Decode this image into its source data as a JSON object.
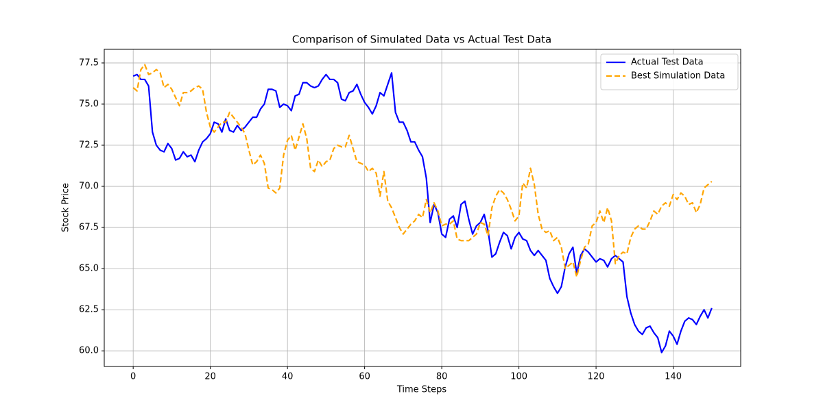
{
  "chart_data": {
    "type": "line",
    "title": "Comparison of Simulated Data vs Actual Test Data",
    "x_label": "Time Steps",
    "y_label": "Stock Price",
    "x": [
      0,
      1,
      2,
      3,
      4,
      5,
      6,
      7,
      8,
      9,
      10,
      11,
      12,
      13,
      14,
      15,
      16,
      17,
      18,
      19,
      20,
      21,
      22,
      23,
      24,
      25,
      26,
      27,
      28,
      29,
      30,
      31,
      32,
      33,
      34,
      35,
      36,
      37,
      38,
      39,
      40,
      41,
      42,
      43,
      44,
      45,
      46,
      47,
      48,
      49,
      50,
      51,
      52,
      53,
      54,
      55,
      56,
      57,
      58,
      59,
      60,
      61,
      62,
      63,
      64,
      65,
      66,
      67,
      68,
      69,
      70,
      71,
      72,
      73,
      74,
      75,
      76,
      77,
      78,
      79,
      80,
      81,
      82,
      83,
      84,
      85,
      86,
      87,
      88,
      89,
      90,
      91,
      92,
      93,
      94,
      95,
      96,
      97,
      98,
      99,
      100,
      101,
      102,
      103,
      104,
      105,
      106,
      107,
      108,
      109,
      110,
      111,
      112,
      113,
      114,
      115,
      116,
      117,
      118,
      119,
      120,
      121,
      122,
      123,
      124,
      125,
      126,
      127,
      128,
      129,
      130,
      131,
      132,
      133,
      134,
      135,
      136,
      137,
      138,
      139,
      140,
      141,
      142,
      143,
      144,
      145,
      146,
      147,
      148,
      149,
      150
    ],
    "series": [
      {
        "name": "Actual Test Data",
        "color": "#0000ff",
        "linestyle": "solid",
        "values": [
          76.7,
          76.8,
          76.5,
          76.5,
          76.1,
          73.3,
          72.5,
          72.2,
          72.1,
          72.6,
          72.3,
          71.6,
          71.7,
          72.1,
          71.8,
          71.9,
          71.5,
          72.2,
          72.7,
          72.9,
          73.2,
          73.9,
          73.8,
          73.3,
          74.1,
          73.4,
          73.3,
          73.7,
          73.4,
          73.6,
          73.9,
          74.2,
          74.2,
          74.7,
          75.0,
          75.9,
          75.9,
          75.8,
          74.8,
          75.0,
          74.9,
          74.6,
          75.5,
          75.6,
          76.3,
          76.3,
          76.1,
          76.0,
          76.1,
          76.5,
          76.8,
          76.5,
          76.5,
          76.3,
          75.3,
          75.2,
          75.7,
          75.8,
          76.2,
          75.6,
          75.1,
          74.8,
          74.4,
          74.9,
          75.7,
          75.5,
          76.2,
          76.9,
          74.5,
          73.9,
          73.9,
          73.4,
          72.7,
          72.7,
          72.2,
          71.8,
          70.5,
          67.8,
          68.9,
          68.4,
          67.1,
          66.9,
          68.0,
          68.2,
          67.5,
          68.9,
          69.1,
          68.0,
          67.1,
          67.6,
          67.8,
          68.3,
          67.3,
          65.7,
          65.9,
          66.6,
          67.2,
          67.0,
          66.2,
          66.9,
          67.2,
          66.8,
          66.7,
          66.1,
          65.8,
          66.1,
          65.8,
          65.5,
          64.4,
          63.9,
          63.5,
          63.9,
          65.1,
          65.9,
          66.3,
          64.7,
          65.8,
          66.2,
          66.0,
          65.7,
          65.4,
          65.6,
          65.5,
          65.1,
          65.6,
          65.8,
          65.6,
          65.4,
          63.3,
          62.3,
          61.6,
          61.2,
          61.0,
          61.4,
          61.5,
          61.1,
          60.8,
          59.9,
          60.3,
          61.2,
          60.9,
          60.4,
          61.2,
          61.8,
          62.0,
          61.9,
          61.6,
          62.1,
          62.5,
          62.0,
          62.6
        ]
      },
      {
        "name": "Best Simulation Data",
        "color": "#ffa500",
        "linestyle": "dashed",
        "values": [
          76.0,
          75.8,
          77.1,
          77.4,
          76.8,
          76.9,
          77.1,
          76.9,
          76.0,
          76.2,
          75.9,
          75.4,
          74.9,
          75.7,
          75.7,
          75.8,
          76.0,
          76.1,
          75.9,
          74.5,
          73.6,
          73.3,
          73.6,
          73.9,
          73.9,
          74.5,
          74.2,
          73.9,
          73.6,
          73.2,
          72.2,
          71.3,
          71.5,
          71.9,
          71.4,
          69.9,
          69.8,
          69.6,
          69.9,
          71.9,
          72.8,
          73.1,
          72.2,
          73.0,
          73.8,
          72.9,
          71.1,
          70.9,
          71.6,
          71.2,
          71.5,
          71.6,
          72.3,
          72.5,
          72.4,
          72.4,
          73.1,
          72.3,
          71.5,
          71.4,
          71.3,
          70.9,
          71.1,
          70.8,
          69.4,
          70.9,
          69.1,
          68.7,
          68.1,
          67.5,
          67.1,
          67.4,
          67.7,
          67.9,
          68.3,
          68.1,
          69.2,
          68.4,
          69.0,
          68.5,
          67.6,
          67.7,
          67.7,
          67.9,
          66.8,
          66.7,
          66.7,
          66.7,
          66.9,
          67.1,
          67.8,
          67.7,
          67.0,
          68.7,
          69.4,
          69.8,
          69.6,
          69.2,
          68.6,
          67.9,
          68.2,
          70.2,
          69.9,
          71.1,
          70.1,
          68.3,
          67.4,
          67.2,
          67.3,
          66.7,
          66.9,
          66.3,
          65.0,
          65.2,
          65.4,
          64.5,
          65.5,
          66.3,
          66.5,
          67.6,
          67.8,
          68.5,
          67.8,
          68.7,
          67.9,
          65.3,
          65.8,
          66.0,
          65.9,
          66.9,
          67.4,
          67.6,
          67.4,
          67.4,
          67.9,
          68.5,
          68.3,
          68.8,
          69.0,
          68.8,
          69.5,
          69.2,
          69.6,
          69.4,
          68.9,
          69.0,
          68.4,
          68.9,
          69.9,
          70.1,
          70.3
        ]
      }
    ],
    "xlim": [
      -7.5,
      157.5
    ],
    "xticks": [
      0,
      20,
      40,
      60,
      80,
      100,
      120,
      140
    ],
    "ylim": [
      59.05,
      78.33
    ],
    "yticks": [
      {
        "value": 60,
        "label": "60.0"
      },
      62.5,
      {
        "value": 65,
        "label": "65.0"
      },
      67.5,
      {
        "value": 70,
        "label": "70.0"
      },
      72.5,
      {
        "value": 75,
        "label": "75.0"
      },
      77.5
    ],
    "grid": true,
    "legend": "upper right"
  }
}
